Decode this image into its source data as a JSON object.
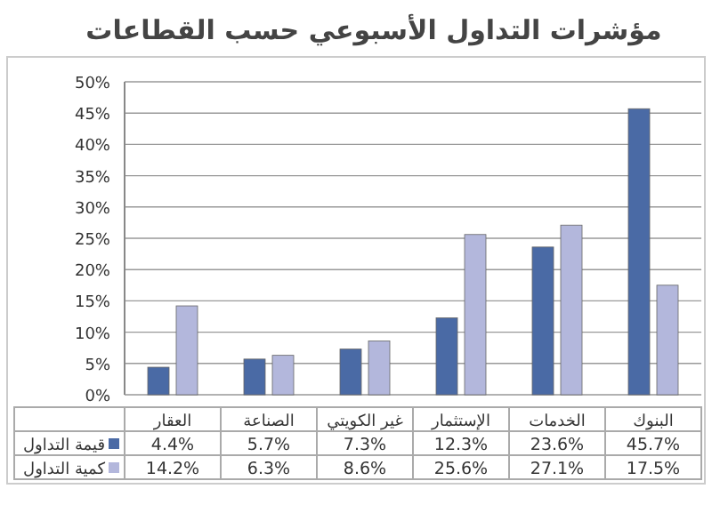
{
  "chart_data": {
    "type": "bar",
    "title": "مؤشرات التداول الأسبوعي حسب القطاعات",
    "categories": [
      "العقار",
      "الصناعة",
      "غير الكويتي",
      "الإستثمار",
      "الخدمات",
      "البنوك"
    ],
    "series": [
      {
        "name": "قيمة التداول",
        "color": "#4a6aa5",
        "values": [
          4.4,
          5.7,
          7.3,
          12.3,
          23.6,
          45.7
        ],
        "value_labels": [
          "4.4%",
          "5.7%",
          "7.3%",
          "12.3%",
          "23.6%",
          "45.7%"
        ]
      },
      {
        "name": "كمية التداول",
        "color": "#b3b7dc",
        "values": [
          14.2,
          6.3,
          8.6,
          25.6,
          27.1,
          17.5
        ],
        "value_labels": [
          "14.2%",
          "6.3%",
          "8.6%",
          "25.6%",
          "27.1%",
          "17.5%"
        ]
      }
    ],
    "ylim": [
      0,
      50
    ],
    "yticks": [
      {
        "value": 0,
        "label": "0%"
      },
      {
        "value": 5,
        "label": "5%"
      },
      {
        "value": 10,
        "label": "10%"
      },
      {
        "value": 15,
        "label": "15%"
      },
      {
        "value": 20,
        "label": "20%"
      },
      {
        "value": 25,
        "label": "25%"
      },
      {
        "value": 30,
        "label": "30%"
      },
      {
        "value": 35,
        "label": "35%"
      },
      {
        "value": 40,
        "label": "40%"
      },
      {
        "value": 45,
        "label": "45%"
      },
      {
        "value": 50,
        "label": "50%"
      }
    ],
    "grid": "y",
    "legend": "bottom left"
  }
}
